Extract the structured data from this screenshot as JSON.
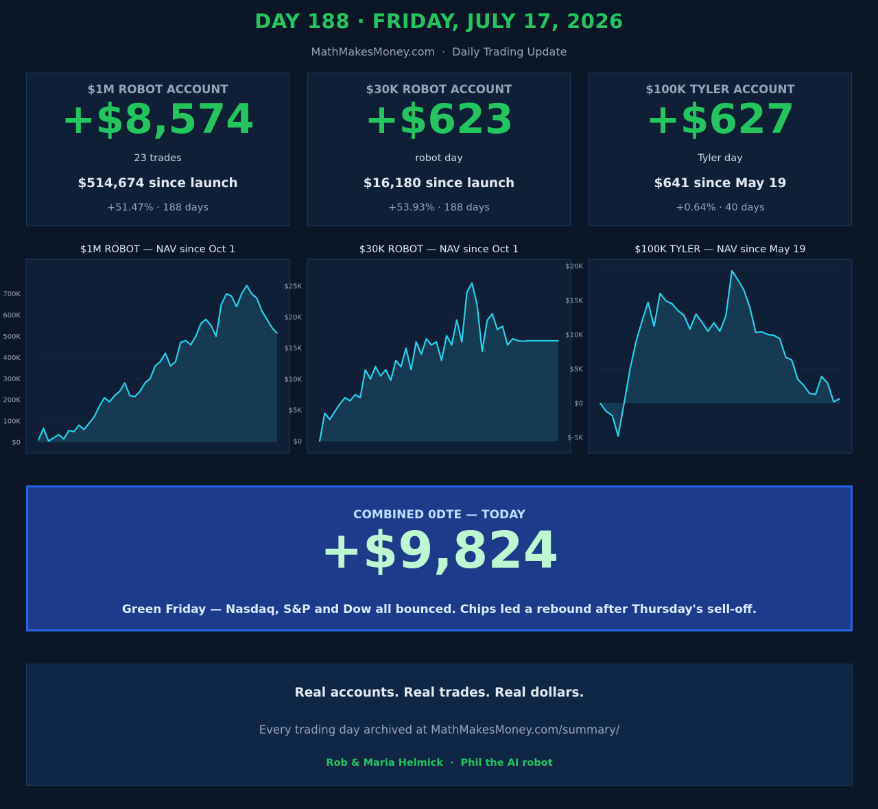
{
  "header": {
    "title": "DAY 188 · FRIDAY, JULY 17, 2026",
    "site": "MathMakesMoney.com",
    "separator": "·",
    "subtitle": "Daily Trading Update"
  },
  "accounts": [
    {
      "label": "$1M ROBOT ACCOUNT",
      "pnl": "+$8,574",
      "detail": "23 trades",
      "since": "$514,674 since launch",
      "pct": "+51.47% · 188 days"
    },
    {
      "label": "$30K ROBOT ACCOUNT",
      "pnl": "+$623",
      "detail": "robot day",
      "since": "$16,180 since launch",
      "pct": "+53.93% · 188 days"
    },
    {
      "label": "$100K TYLER ACCOUNT",
      "pnl": "+$627",
      "detail": "Tyler day",
      "since": "$641 since May 19",
      "pct": "+0.64% · 40 days"
    }
  ],
  "colors": {
    "accent_green": "#22c55e",
    "line": "#22d3ee",
    "fill": "#153a52",
    "panel": "#0f1f35",
    "combined_bg": "#1e3a8a",
    "combined_border": "#2563eb"
  },
  "chart_data": [
    {
      "type": "area",
      "title": "$1M ROBOT — NAV since Oct 1",
      "ylim": [
        -10000,
        780000
      ],
      "yticks": [
        0,
        100000,
        200000,
        300000,
        400000,
        500000,
        600000,
        700000
      ],
      "ytick_labels": [
        "$0",
        "100K",
        "200K",
        "300K",
        "400K",
        "500K",
        "600K",
        "700K"
      ],
      "grid": true,
      "x": [
        0,
        4,
        8,
        12,
        16,
        20,
        24,
        28,
        32,
        36,
        40,
        44,
        48,
        52,
        56,
        60,
        64,
        68,
        72,
        76,
        80,
        84,
        88,
        92,
        96,
        100,
        104,
        108,
        112,
        116,
        120,
        124,
        128,
        132,
        136,
        140,
        144,
        148,
        152,
        156,
        160,
        164,
        168,
        172,
        176,
        180,
        184,
        188
      ],
      "y": [
        10000,
        65000,
        5000,
        20000,
        35000,
        15000,
        55000,
        50000,
        80000,
        60000,
        90000,
        120000,
        170000,
        210000,
        190000,
        220000,
        240000,
        280000,
        220000,
        215000,
        240000,
        280000,
        300000,
        360000,
        380000,
        420000,
        360000,
        380000,
        470000,
        480000,
        460000,
        500000,
        560000,
        580000,
        550000,
        500000,
        650000,
        700000,
        690000,
        640000,
        700000,
        740000,
        700000,
        680000,
        620000,
        580000,
        540000,
        514674
      ],
      "values_unit": "USD"
    },
    {
      "type": "area",
      "title": "$30K ROBOT — NAV since Oct 1",
      "ylim": [
        -500,
        27000
      ],
      "yticks": [
        0,
        5000,
        10000,
        15000,
        20000,
        25000
      ],
      "ytick_labels": [
        "$0",
        "$5K",
        "$10K",
        "$15K",
        "$20K",
        "$25K"
      ],
      "grid": true,
      "x": [
        0,
        4,
        8,
        12,
        16,
        20,
        24,
        28,
        32,
        36,
        40,
        44,
        48,
        52,
        56,
        60,
        64,
        68,
        72,
        76,
        80,
        84,
        88,
        92,
        96,
        100,
        104,
        108,
        112,
        116,
        120,
        124,
        128,
        132,
        136,
        140,
        144,
        148,
        152,
        156,
        160,
        164,
        168,
        172,
        176,
        180,
        184,
        188
      ],
      "y": [
        0,
        4500,
        3500,
        4800,
        6000,
        7000,
        6500,
        7500,
        7000,
        11500,
        10000,
        12000,
        10500,
        11500,
        9800,
        13000,
        12000,
        15000,
        11500,
        16000,
        14000,
        16500,
        15500,
        16000,
        13000,
        17000,
        15500,
        19500,
        16000,
        24000,
        25500,
        22000,
        14500,
        19500,
        20500,
        18000,
        18500,
        15500,
        16500,
        16200,
        16100,
        16180,
        16180,
        16180,
        16180,
        16180,
        16180,
        16180
      ],
      "values_unit": "USD"
    },
    {
      "type": "area",
      "title": "$100K TYLER — NAV since May 19",
      "ylim": [
        -6000,
        20500
      ],
      "yticks": [
        -5000,
        0,
        5000,
        10000,
        15000,
        20000
      ],
      "ytick_labels": [
        "$-5K",
        "$0",
        "$5K",
        "$10K",
        "$15K",
        "$20K"
      ],
      "grid": true,
      "x": [
        0,
        1,
        2,
        3,
        4,
        5,
        6,
        7,
        8,
        9,
        10,
        11,
        12,
        13,
        14,
        15,
        16,
        17,
        18,
        19,
        20,
        21,
        22,
        23,
        24,
        25,
        26,
        27,
        28,
        29,
        30,
        31,
        32,
        33,
        34,
        35,
        36,
        37,
        38,
        39,
        40
      ],
      "y": [
        0,
        -1200,
        -1800,
        -4800,
        0,
        5000,
        9000,
        12000,
        14700,
        11200,
        16000,
        14900,
        14500,
        13500,
        12800,
        10800,
        13000,
        11800,
        10500,
        11700,
        10500,
        12700,
        19300,
        18000,
        16500,
        14000,
        10300,
        10400,
        10000,
        9900,
        9400,
        6700,
        6300,
        3500,
        2600,
        1400,
        1300,
        3900,
        2900,
        200,
        641
      ],
      "values_unit": "USD"
    }
  ],
  "combined": {
    "label": "COMBINED 0DTE — TODAY",
    "pnl": "+$9,824",
    "note": "Green Friday — Nasdaq, S&P and Dow all bounced. Chips led a rebound after Thursday's sell-off."
  },
  "footer": {
    "headline": "Real accounts. Real trades. Real dollars.",
    "archive": "Every trading day archived at MathMakesMoney.com/summary/",
    "name1": "Rob & Maria Helmick",
    "separator": "·",
    "name2": "Phil the AI robot"
  }
}
